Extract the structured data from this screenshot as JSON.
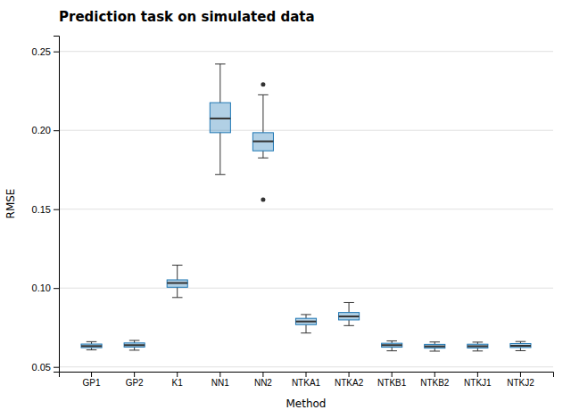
{
  "chart_data": {
    "type": "box",
    "title": "Prediction task on simulated data",
    "xlabel": "Method",
    "ylabel": "RMSE",
    "ylim": [
      0.047,
      0.26
    ],
    "yticks": [
      0.05,
      {
        "value": 0.1,
        "label": "0.10"
      },
      0.15,
      {
        "value": 0.2,
        "label": "0.20"
      },
      0.25
    ],
    "grid": true,
    "categories": [
      "GP1",
      "GP2",
      "K1",
      "NN1",
      "NN2",
      "NTKA1",
      "NTKA2",
      "NTKB1",
      "NTKB2",
      "NTKJ1",
      "NTKJ2"
    ],
    "boxes": [
      {
        "whislo": 0.0608,
        "q1": 0.0622,
        "med": 0.0632,
        "q3": 0.0645,
        "whishi": 0.066,
        "fliers": []
      },
      {
        "whislo": 0.0606,
        "q1": 0.0626,
        "med": 0.0638,
        "q3": 0.0652,
        "whishi": 0.0668,
        "fliers": []
      },
      {
        "whislo": 0.094,
        "q1": 0.1005,
        "med": 0.1032,
        "q3": 0.1052,
        "whishi": 0.1145,
        "fliers": []
      },
      {
        "whislo": 0.172,
        "q1": 0.1985,
        "med": 0.2075,
        "q3": 0.2175,
        "whishi": 0.242,
        "fliers": []
      },
      {
        "whislo": 0.1825,
        "q1": 0.187,
        "med": 0.193,
        "q3": 0.1985,
        "whishi": 0.2225,
        "fliers": [
          0.156,
          0.229
        ]
      },
      {
        "whislo": 0.0715,
        "q1": 0.0768,
        "med": 0.0788,
        "q3": 0.0808,
        "whishi": 0.0832,
        "fliers": []
      },
      {
        "whislo": 0.0762,
        "q1": 0.0798,
        "med": 0.082,
        "q3": 0.0845,
        "whishi": 0.0908,
        "fliers": []
      },
      {
        "whislo": 0.0602,
        "q1": 0.0625,
        "med": 0.0638,
        "q3": 0.065,
        "whishi": 0.0665,
        "fliers": []
      },
      {
        "whislo": 0.06,
        "q1": 0.0619,
        "med": 0.063,
        "q3": 0.0643,
        "whishi": 0.0658,
        "fliers": []
      },
      {
        "whislo": 0.0601,
        "q1": 0.062,
        "med": 0.0631,
        "q3": 0.0644,
        "whishi": 0.0657,
        "fliers": []
      },
      {
        "whislo": 0.0603,
        "q1": 0.0623,
        "med": 0.0634,
        "q3": 0.0648,
        "whishi": 0.0661,
        "fliers": []
      }
    ]
  }
}
